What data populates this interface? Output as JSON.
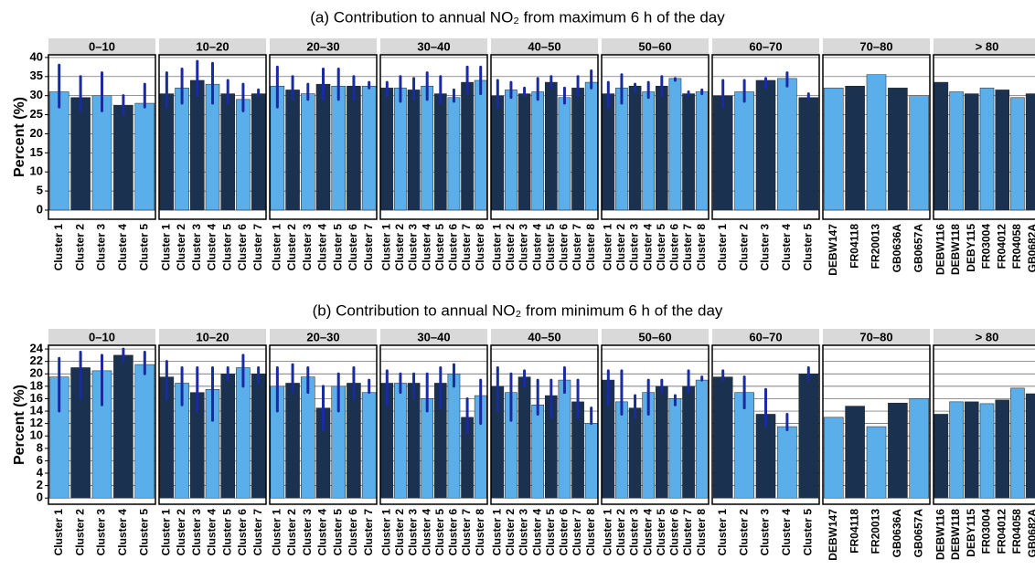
{
  "chart_data": [
    {
      "type": "bar",
      "title": "(a)  Contribution to annual NO₂ from maximum 6 h of the day",
      "ylabel": "Percent (%)",
      "ylim": [
        -2.4,
        40.7
      ],
      "yticks": [
        0,
        5,
        10,
        15,
        20,
        25,
        30,
        35,
        40
      ],
      "grid": true,
      "colors": [
        "#5aaeea",
        "#1b3150"
      ],
      "error_color": "#1a2aa0",
      "facets": [
        {
          "label": "0–10",
          "categories": [
            "Cluster 1",
            "Cluster 2",
            "Cluster 3",
            "Cluster 4",
            "Cluster 5"
          ],
          "values": [
            31,
            29.5,
            30,
            27.5,
            28
          ],
          "errors": [
            [
              27,
              38
            ],
            [
              26,
              35
            ],
            [
              26,
              36
            ],
            [
              25,
              30
            ],
            [
              27,
              33
            ]
          ]
        },
        {
          "label": "10–20",
          "categories": [
            "Cluster 1",
            "Cluster 2",
            "Cluster 3",
            "Cluster 4",
            "Cluster 5",
            "Cluster 6",
            "Cluster 7"
          ],
          "values": [
            30.5,
            32,
            34,
            33,
            30.5,
            29,
            30.5
          ],
          "errors": [
            [
              27,
              36
            ],
            [
              28,
              37
            ],
            [
              30,
              39
            ],
            [
              28,
              38.5
            ],
            [
              28,
              34
            ],
            [
              26,
              33
            ],
            [
              30,
              31.5
            ]
          ]
        },
        {
          "label": "20–30",
          "categories": [
            "Cluster 1",
            "Cluster 2",
            "Cluster 3",
            "Cluster 4",
            "Cluster 5",
            "Cluster 6",
            "Cluster 7"
          ],
          "values": [
            32.5,
            31.5,
            30.5,
            33,
            32.5,
            32.5,
            32.5
          ],
          "errors": [
            [
              27,
              37.5
            ],
            [
              29,
              35
            ],
            [
              29,
              33
            ],
            [
              29,
              37
            ],
            [
              29,
              37
            ],
            [
              29,
              35
            ],
            [
              32,
              33.5
            ]
          ]
        },
        {
          "label": "30–40",
          "categories": [
            "Cluster 1",
            "Cluster 2",
            "Cluster 3",
            "Cluster 4",
            "Cluster 5",
            "Cluster 6",
            "Cluster 7",
            "Cluster 8"
          ],
          "values": [
            32,
            32,
            31.5,
            32.5,
            30.5,
            29.5,
            33.5,
            34
          ],
          "errors": [
            [
              30,
              33.5
            ],
            [
              28.5,
              35
            ],
            [
              29,
              34.5
            ],
            [
              29,
              36
            ],
            [
              28,
              35
            ],
            [
              28.5,
              31.5
            ],
            [
              30.5,
              37.5
            ],
            [
              30.5,
              37.5
            ]
          ]
        },
        {
          "label": "40–50",
          "categories": [
            "Cluster 1",
            "Cluster 2",
            "Cluster 3",
            "Cluster 4",
            "Cluster 5",
            "Cluster 6",
            "Cluster 7",
            "Cluster 8"
          ],
          "values": [
            30,
            31.5,
            30.5,
            31,
            33.5,
            29.5,
            32,
            33.5
          ],
          "errors": [
            [
              27,
              34
            ],
            [
              29.5,
              33.5
            ],
            [
              30,
              32
            ],
            [
              29,
              34.5
            ],
            [
              32,
              35
            ],
            [
              28,
              32
            ],
            [
              30,
              35
            ],
            [
              32,
              36.5
            ]
          ]
        },
        {
          "label": "50–60",
          "categories": [
            "Cluster 1",
            "Cluster 2",
            "Cluster 3",
            "Cluster 4",
            "Cluster 5",
            "Cluster 6",
            "Cluster 7",
            "Cluster 8"
          ],
          "values": [
            30.5,
            32,
            32.5,
            31,
            32.5,
            34.5,
            30.5,
            31
          ],
          "errors": [
            [
              27,
              33.5
            ],
            [
              28,
              35.5
            ],
            [
              31,
              33
            ],
            [
              29.5,
              33.5
            ],
            [
              30,
              35
            ],
            [
              34,
              34.5
            ],
            [
              30,
              31
            ],
            [
              30.5,
              31.5
            ]
          ]
        },
        {
          "label": "60–70",
          "categories": [
            "Cluster 1",
            "Cluster 2",
            "Cluster 3",
            "Cluster 4",
            "Cluster 5"
          ],
          "values": [
            30,
            31,
            34,
            34.5,
            29.5
          ],
          "errors": [
            [
              27,
              34
            ],
            [
              28.5,
              34
            ],
            [
              32,
              34.5
            ],
            [
              32.5,
              36
            ],
            [
              29,
              30.5
            ]
          ]
        },
        {
          "label": "70–80",
          "categories": [
            "DEBW147",
            "FR04118",
            "FR20013",
            "GB0636A",
            "GB0657A"
          ],
          "values": [
            32,
            32.5,
            35.5,
            32,
            30
          ]
        },
        {
          "label": "> 80",
          "categories": [
            "DEBW116",
            "DEBW118",
            "DEBY115",
            "FR03004",
            "FR04012",
            "FR04058",
            "GB0682A"
          ],
          "values": [
            33.5,
            31,
            30.5,
            32,
            31.5,
            29.5,
            30.5
          ]
        }
      ]
    },
    {
      "type": "bar",
      "title": "(b)  Contribution to annual NO₂ from minimum 6 h of the day",
      "ylabel": "Percent (%)",
      "ylim": [
        -1,
        24.6
      ],
      "yticks": [
        0,
        2,
        4,
        6,
        8,
        10,
        12,
        14,
        16,
        18,
        20,
        22,
        24
      ],
      "grid": true,
      "colors": [
        "#5aaeea",
        "#1b3150"
      ],
      "error_color": "#1a2aa0",
      "facets": [
        {
          "label": "0–10",
          "categories": [
            "Cluster 1",
            "Cluster 2",
            "Cluster 3",
            "Cluster 4",
            "Cluster 5"
          ],
          "values": [
            19.5,
            21,
            20.5,
            23,
            21.5
          ],
          "errors": [
            [
              14,
              22.5
            ],
            [
              16,
              23.5
            ],
            [
              15,
              23
            ],
            [
              22,
              24
            ],
            [
              20,
              23.5
            ]
          ]
        },
        {
          "label": "10–20",
          "categories": [
            "Cluster 1",
            "Cluster 2",
            "Cluster 3",
            "Cluster 4",
            "Cluster 5",
            "Cluster 6",
            "Cluster 7"
          ],
          "values": [
            19.5,
            18.5,
            17,
            17.5,
            20,
            21,
            20
          ],
          "errors": [
            [
              16,
              22
            ],
            [
              15,
              21
            ],
            [
              14,
              21
            ],
            [
              12.5,
              21
            ],
            [
              19,
              21
            ],
            [
              18,
              23
            ],
            [
              18.5,
              21
            ]
          ]
        },
        {
          "label": "20–30",
          "categories": [
            "Cluster 1",
            "Cluster 2",
            "Cluster 3",
            "Cluster 4",
            "Cluster 5",
            "Cluster 6",
            "Cluster 7"
          ],
          "values": [
            18,
            18.5,
            19.5,
            14.5,
            18,
            18.5,
            17
          ],
          "errors": [
            [
              14,
              21
            ],
            [
              17,
              21.5
            ],
            [
              17,
              21
            ],
            [
              11,
              18
            ],
            [
              14,
              20
            ],
            [
              16,
              21
            ],
            [
              17,
              19
            ]
          ]
        },
        {
          "label": "30–40",
          "categories": [
            "Cluster 1",
            "Cluster 2",
            "Cluster 3",
            "Cluster 4",
            "Cluster 5",
            "Cluster 6",
            "Cluster 7",
            "Cluster 8"
          ],
          "values": [
            18.5,
            18.5,
            18.5,
            16,
            18.5,
            20,
            13,
            16.5
          ],
          "errors": [
            [
              15,
              20.5
            ],
            [
              17,
              20
            ],
            [
              16,
              20
            ],
            [
              14,
              20
            ],
            [
              14.5,
              21
            ],
            [
              18,
              21.5
            ],
            [
              10.5,
              16
            ],
            [
              12,
              19
            ]
          ]
        },
        {
          "label": "40–50",
          "categories": [
            "Cluster 1",
            "Cluster 2",
            "Cluster 3",
            "Cluster 4",
            "Cluster 5",
            "Cluster 6",
            "Cluster 7",
            "Cluster 8"
          ],
          "values": [
            18,
            17,
            19.5,
            15,
            16.5,
            19,
            15.5,
            12
          ],
          "errors": [
            [
              14,
              21
            ],
            [
              12.5,
              20
            ],
            [
              18,
              20.5
            ],
            [
              13.5,
              19
            ],
            [
              13,
              19
            ],
            [
              17,
              21
            ],
            [
              13,
              19
            ],
            [
              12,
              14.5
            ]
          ]
        },
        {
          "label": "50–60",
          "categories": [
            "Cluster 1",
            "Cluster 2",
            "Cluster 3",
            "Cluster 4",
            "Cluster 5",
            "Cluster 6",
            "Cluster 7",
            "Cluster 8"
          ],
          "values": [
            19,
            15.5,
            14.5,
            17,
            18,
            16,
            18,
            19
          ],
          "errors": [
            [
              15,
              20.5
            ],
            [
              13.5,
              20.5
            ],
            [
              13,
              16.5
            ],
            [
              13.5,
              19
            ],
            [
              17,
              19
            ],
            [
              15,
              16.5
            ],
            [
              17,
              20.5
            ],
            [
              19,
              19.5
            ]
          ]
        },
        {
          "label": "60–70",
          "categories": [
            "Cluster 1",
            "Cluster 2",
            "Cluster 3",
            "Cluster 4",
            "Cluster 5"
          ],
          "values": [
            19.5,
            17,
            13.5,
            11.5,
            20
          ],
          "errors": [
            [
              19,
              20.5
            ],
            [
              14.5,
              19.5
            ],
            [
              11.5,
              17.5
            ],
            [
              11,
              13.5
            ],
            [
              19,
              21
            ]
          ]
        },
        {
          "label": "70–80",
          "categories": [
            "DEBW147",
            "FR04118",
            "FR20013",
            "GB0636A",
            "GB0657A"
          ],
          "values": [
            13,
            14.8,
            11.5,
            15.3,
            16
          ]
        },
        {
          "label": "> 80",
          "categories": [
            "DEBW116",
            "DEBW118",
            "DEBY115",
            "FR03004",
            "FR04012",
            "FR04058",
            "GB0682A"
          ],
          "values": [
            13.5,
            15.5,
            15.5,
            15.2,
            15.8,
            17.7,
            16.8
          ]
        }
      ]
    }
  ]
}
